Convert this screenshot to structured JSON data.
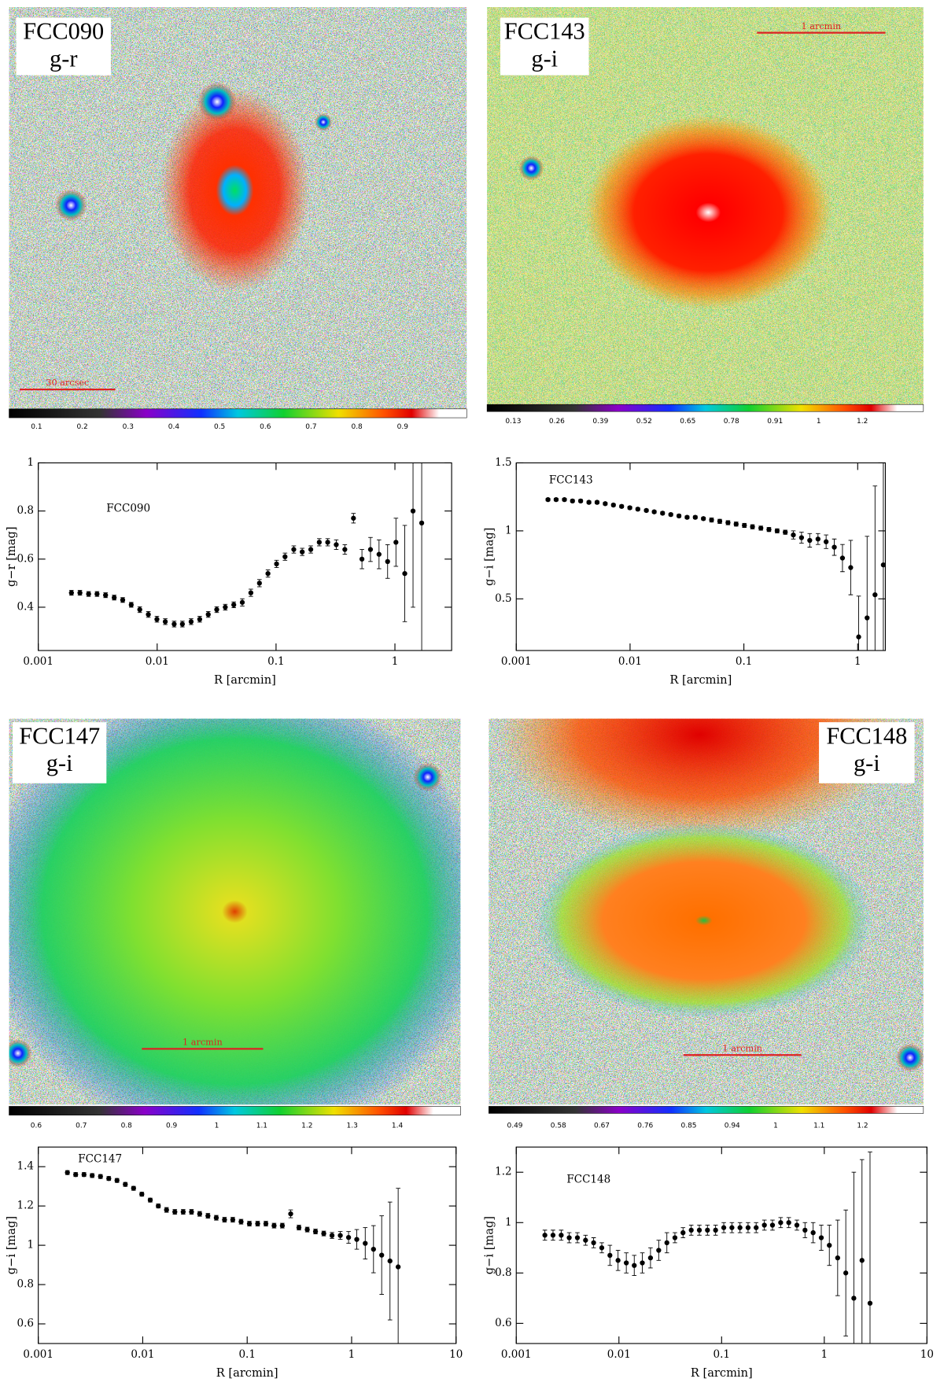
{
  "panels": [
    {
      "label": "FCC090",
      "band": "g-r",
      "scalebar": "30 arcsec",
      "colorbar_ticks": [
        0.1,
        0.2,
        0.3,
        0.4,
        0.5,
        0.6,
        0.7,
        0.8,
        0.9
      ]
    },
    {
      "label": "FCC143",
      "band": "g-i",
      "scalebar": "1 arcmin",
      "colorbar_ticks": [
        0.13,
        0.26,
        0.39,
        0.52,
        0.65,
        0.78,
        0.91,
        1,
        1.2
      ]
    },
    {
      "label": "FCC147",
      "band": "g-i",
      "scalebar": "1 arcmin",
      "colorbar_ticks": [
        0.6,
        0.7,
        0.8,
        0.9,
        1,
        1.1,
        1.2,
        1.3,
        1.4
      ]
    },
    {
      "label": "FCC148",
      "band": "g-i",
      "scalebar": "1 arcmin",
      "colorbar_ticks": [
        0.49,
        0.58,
        0.67,
        0.76,
        0.85,
        0.94,
        1,
        1.1,
        1.2
      ]
    }
  ],
  "chart_data": [
    {
      "type": "scatter",
      "annotation": "FCC090",
      "xlabel": "R [arcmin]",
      "ylabel": "g−r [mag]",
      "xscale": "log",
      "color": "#000000",
      "xlim": [
        0.001,
        3
      ],
      "ylim": [
        0.22,
        1
      ],
      "xticks": [
        0.001,
        0.01,
        0.1,
        1
      ],
      "yticks": [
        0.4,
        0.6,
        0.8,
        1
      ],
      "x": [
        0.0019,
        0.00224,
        0.00265,
        0.00312,
        0.00368,
        0.00435,
        0.00513,
        0.00605,
        0.00714,
        0.00843,
        0.00995,
        0.0117,
        0.0139,
        0.0163,
        0.0193,
        0.0228,
        0.0269,
        0.0317,
        0.0374,
        0.0441,
        0.052,
        0.0614,
        0.0725,
        0.0855,
        0.101,
        0.119,
        0.141,
        0.166,
        0.196,
        0.231,
        0.272,
        0.321,
        0.379,
        0.448,
        0.528,
        0.623,
        0.735,
        0.868,
        1.02,
        1.21,
        1.42,
        1.68
      ],
      "values": [
        0.46,
        0.46,
        0.455,
        0.455,
        0.45,
        0.44,
        0.43,
        0.41,
        0.39,
        0.37,
        0.35,
        0.34,
        0.33,
        0.33,
        0.34,
        0.35,
        0.37,
        0.39,
        0.4,
        0.41,
        0.42,
        0.46,
        0.5,
        0.54,
        0.58,
        0.61,
        0.64,
        0.63,
        0.64,
        0.67,
        0.67,
        0.66,
        0.64,
        0.77,
        0.6,
        0.64,
        0.62,
        0.59,
        0.67,
        0.54,
        0.8,
        0.75
      ],
      "errors": [
        0.01,
        0.01,
        0.01,
        0.01,
        0.01,
        0.01,
        0.01,
        0.01,
        0.012,
        0.012,
        0.012,
        0.012,
        0.012,
        0.012,
        0.012,
        0.012,
        0.012,
        0.012,
        0.012,
        0.012,
        0.015,
        0.015,
        0.015,
        0.015,
        0.015,
        0.015,
        0.015,
        0.015,
        0.015,
        0.015,
        0.015,
        0.02,
        0.02,
        0.02,
        0.04,
        0.05,
        0.06,
        0.07,
        0.1,
        0.2,
        0.4,
        0.6
      ]
    },
    {
      "type": "scatter",
      "annotation": "FCC143",
      "xlabel": "R [arcmin]",
      "ylabel": "g−i [mag]",
      "xscale": "log",
      "color": "#000000",
      "xlim": [
        0.001,
        1.75
      ],
      "ylim": [
        0.12,
        1.5
      ],
      "xticks": [
        0.001,
        0.01,
        0.1,
        1
      ],
      "yticks": [
        0.5,
        1,
        1.5
      ],
      "x": [
        0.0019,
        0.00224,
        0.00265,
        0.00312,
        0.00368,
        0.00435,
        0.00513,
        0.00605,
        0.00714,
        0.00843,
        0.00995,
        0.0117,
        0.0139,
        0.0163,
        0.0193,
        0.0228,
        0.0269,
        0.0317,
        0.0374,
        0.0441,
        0.052,
        0.0614,
        0.0725,
        0.0855,
        0.101,
        0.119,
        0.141,
        0.166,
        0.196,
        0.231,
        0.272,
        0.321,
        0.379,
        0.448,
        0.528,
        0.623,
        0.735,
        0.868,
        1.02,
        1.21,
        1.42,
        1.68
      ],
      "values": [
        1.23,
        1.23,
        1.23,
        1.22,
        1.22,
        1.21,
        1.21,
        1.2,
        1.19,
        1.18,
        1.17,
        1.16,
        1.15,
        1.14,
        1.13,
        1.12,
        1.11,
        1.1,
        1.1,
        1.09,
        1.08,
        1.07,
        1.06,
        1.05,
        1.04,
        1.03,
        1.02,
        1.01,
        1.0,
        0.99,
        0.97,
        0.95,
        0.93,
        0.94,
        0.92,
        0.88,
        0.8,
        0.73,
        0.22,
        0.36,
        0.53,
        0.75
      ],
      "errors": [
        0.01,
        0.01,
        0.01,
        0.01,
        0.01,
        0.01,
        0.01,
        0.01,
        0.01,
        0.01,
        0.01,
        0.01,
        0.01,
        0.01,
        0.01,
        0.01,
        0.01,
        0.01,
        0.01,
        0.01,
        0.015,
        0.015,
        0.015,
        0.015,
        0.015,
        0.015,
        0.015,
        0.015,
        0.015,
        0.015,
        0.03,
        0.04,
        0.05,
        0.04,
        0.05,
        0.06,
        0.1,
        0.2,
        0.3,
        0.6,
        0.8,
        1.0
      ]
    },
    {
      "type": "scatter",
      "annotation": "FCC147",
      "xlabel": "R [arcmin]",
      "ylabel": "g−i [mag]",
      "xscale": "log",
      "color": "#000000",
      "xlim": [
        0.001,
        10
      ],
      "ylim": [
        0.5,
        1.5
      ],
      "xticks": [
        0.001,
        0.01,
        0.1,
        1,
        10
      ],
      "yticks": [
        0.6,
        0.8,
        1,
        1.2,
        1.4
      ],
      "x": [
        0.0019,
        0.00228,
        0.00274,
        0.00328,
        0.00394,
        0.00473,
        0.00567,
        0.00681,
        0.00817,
        0.0098,
        0.0118,
        0.0141,
        0.0169,
        0.0203,
        0.0244,
        0.0293,
        0.0351,
        0.0421,
        0.0506,
        0.0607,
        0.0728,
        0.0874,
        0.105,
        0.126,
        0.151,
        0.181,
        0.217,
        0.261,
        0.313,
        0.376,
        0.451,
        0.541,
        0.649,
        0.779,
        0.935,
        1.12,
        1.35,
        1.62,
        1.94,
        2.33,
        2.79
      ],
      "values": [
        1.37,
        1.36,
        1.36,
        1.355,
        1.35,
        1.34,
        1.33,
        1.31,
        1.29,
        1.26,
        1.23,
        1.2,
        1.18,
        1.17,
        1.17,
        1.17,
        1.16,
        1.15,
        1.14,
        1.13,
        1.13,
        1.12,
        1.11,
        1.11,
        1.11,
        1.1,
        1.1,
        1.16,
        1.09,
        1.08,
        1.07,
        1.06,
        1.05,
        1.05,
        1.04,
        1.03,
        1.01,
        0.98,
        0.95,
        0.92,
        0.89
      ],
      "errors": [
        0.01,
        0.01,
        0.01,
        0.01,
        0.01,
        0.01,
        0.01,
        0.01,
        0.01,
        0.01,
        0.01,
        0.01,
        0.012,
        0.012,
        0.012,
        0.012,
        0.012,
        0.012,
        0.012,
        0.012,
        0.012,
        0.012,
        0.012,
        0.012,
        0.012,
        0.012,
        0.012,
        0.02,
        0.012,
        0.012,
        0.012,
        0.012,
        0.015,
        0.02,
        0.03,
        0.05,
        0.08,
        0.12,
        0.2,
        0.3,
        0.4
      ]
    },
    {
      "type": "scatter",
      "annotation": "FCC148",
      "xlabel": "R [arcmin]",
      "ylabel": "g−i [mag]",
      "xscale": "log",
      "color": "#000000",
      "xlim": [
        0.001,
        10
      ],
      "ylim": [
        0.52,
        1.3
      ],
      "xticks": [
        0.001,
        0.01,
        0.1,
        1,
        10
      ],
      "yticks": [
        0.6,
        0.8,
        1,
        1.2
      ],
      "x": [
        0.0019,
        0.00228,
        0.00274,
        0.00328,
        0.00394,
        0.00473,
        0.00567,
        0.00681,
        0.00817,
        0.0098,
        0.0118,
        0.0141,
        0.0169,
        0.0203,
        0.0244,
        0.0293,
        0.0351,
        0.0421,
        0.0506,
        0.0607,
        0.0728,
        0.0874,
        0.105,
        0.126,
        0.151,
        0.181,
        0.217,
        0.261,
        0.313,
        0.376,
        0.451,
        0.541,
        0.649,
        0.779,
        0.935,
        1.12,
        1.35,
        1.62,
        1.94,
        2.33,
        2.79
      ],
      "values": [
        0.95,
        0.95,
        0.95,
        0.94,
        0.94,
        0.93,
        0.92,
        0.9,
        0.87,
        0.85,
        0.84,
        0.83,
        0.84,
        0.86,
        0.89,
        0.92,
        0.94,
        0.96,
        0.97,
        0.97,
        0.97,
        0.97,
        0.98,
        0.98,
        0.98,
        0.98,
        0.98,
        0.99,
        0.99,
        1.0,
        1.0,
        0.99,
        0.97,
        0.96,
        0.94,
        0.91,
        0.86,
        0.8,
        0.7,
        0.85,
        0.68
      ],
      "errors": [
        0.02,
        0.02,
        0.02,
        0.02,
        0.02,
        0.02,
        0.02,
        0.02,
        0.04,
        0.04,
        0.04,
        0.04,
        0.04,
        0.04,
        0.04,
        0.04,
        0.02,
        0.02,
        0.02,
        0.02,
        0.02,
        0.02,
        0.02,
        0.02,
        0.02,
        0.02,
        0.02,
        0.02,
        0.02,
        0.02,
        0.02,
        0.02,
        0.03,
        0.04,
        0.05,
        0.08,
        0.15,
        0.25,
        0.5,
        0.4,
        0.6
      ]
    }
  ]
}
